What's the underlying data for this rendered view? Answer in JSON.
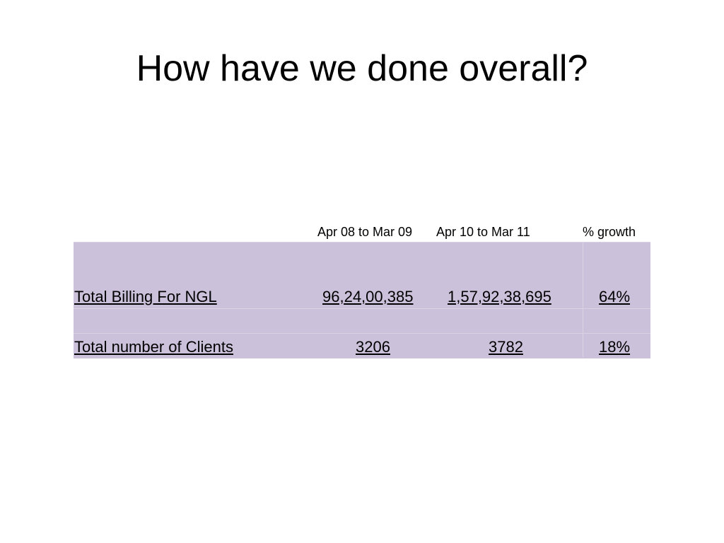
{
  "slide": {
    "title": "How have we done overall?"
  },
  "table": {
    "headers": [
      "Apr 08 to Mar 09",
      "Apr 10 to Mar 11",
      "% growth"
    ],
    "rows": [
      {
        "label": "Total Billing For NGL",
        "values": [
          "96,24,00,385",
          "1,57,92,38,695",
          "64%"
        ]
      },
      {
        "label": "Total number of  Clients",
        "values": [
          "3206",
          "3782",
          "18%"
        ]
      }
    ]
  },
  "colors": {
    "row_background": "#ccc1da",
    "text": "#000000"
  }
}
